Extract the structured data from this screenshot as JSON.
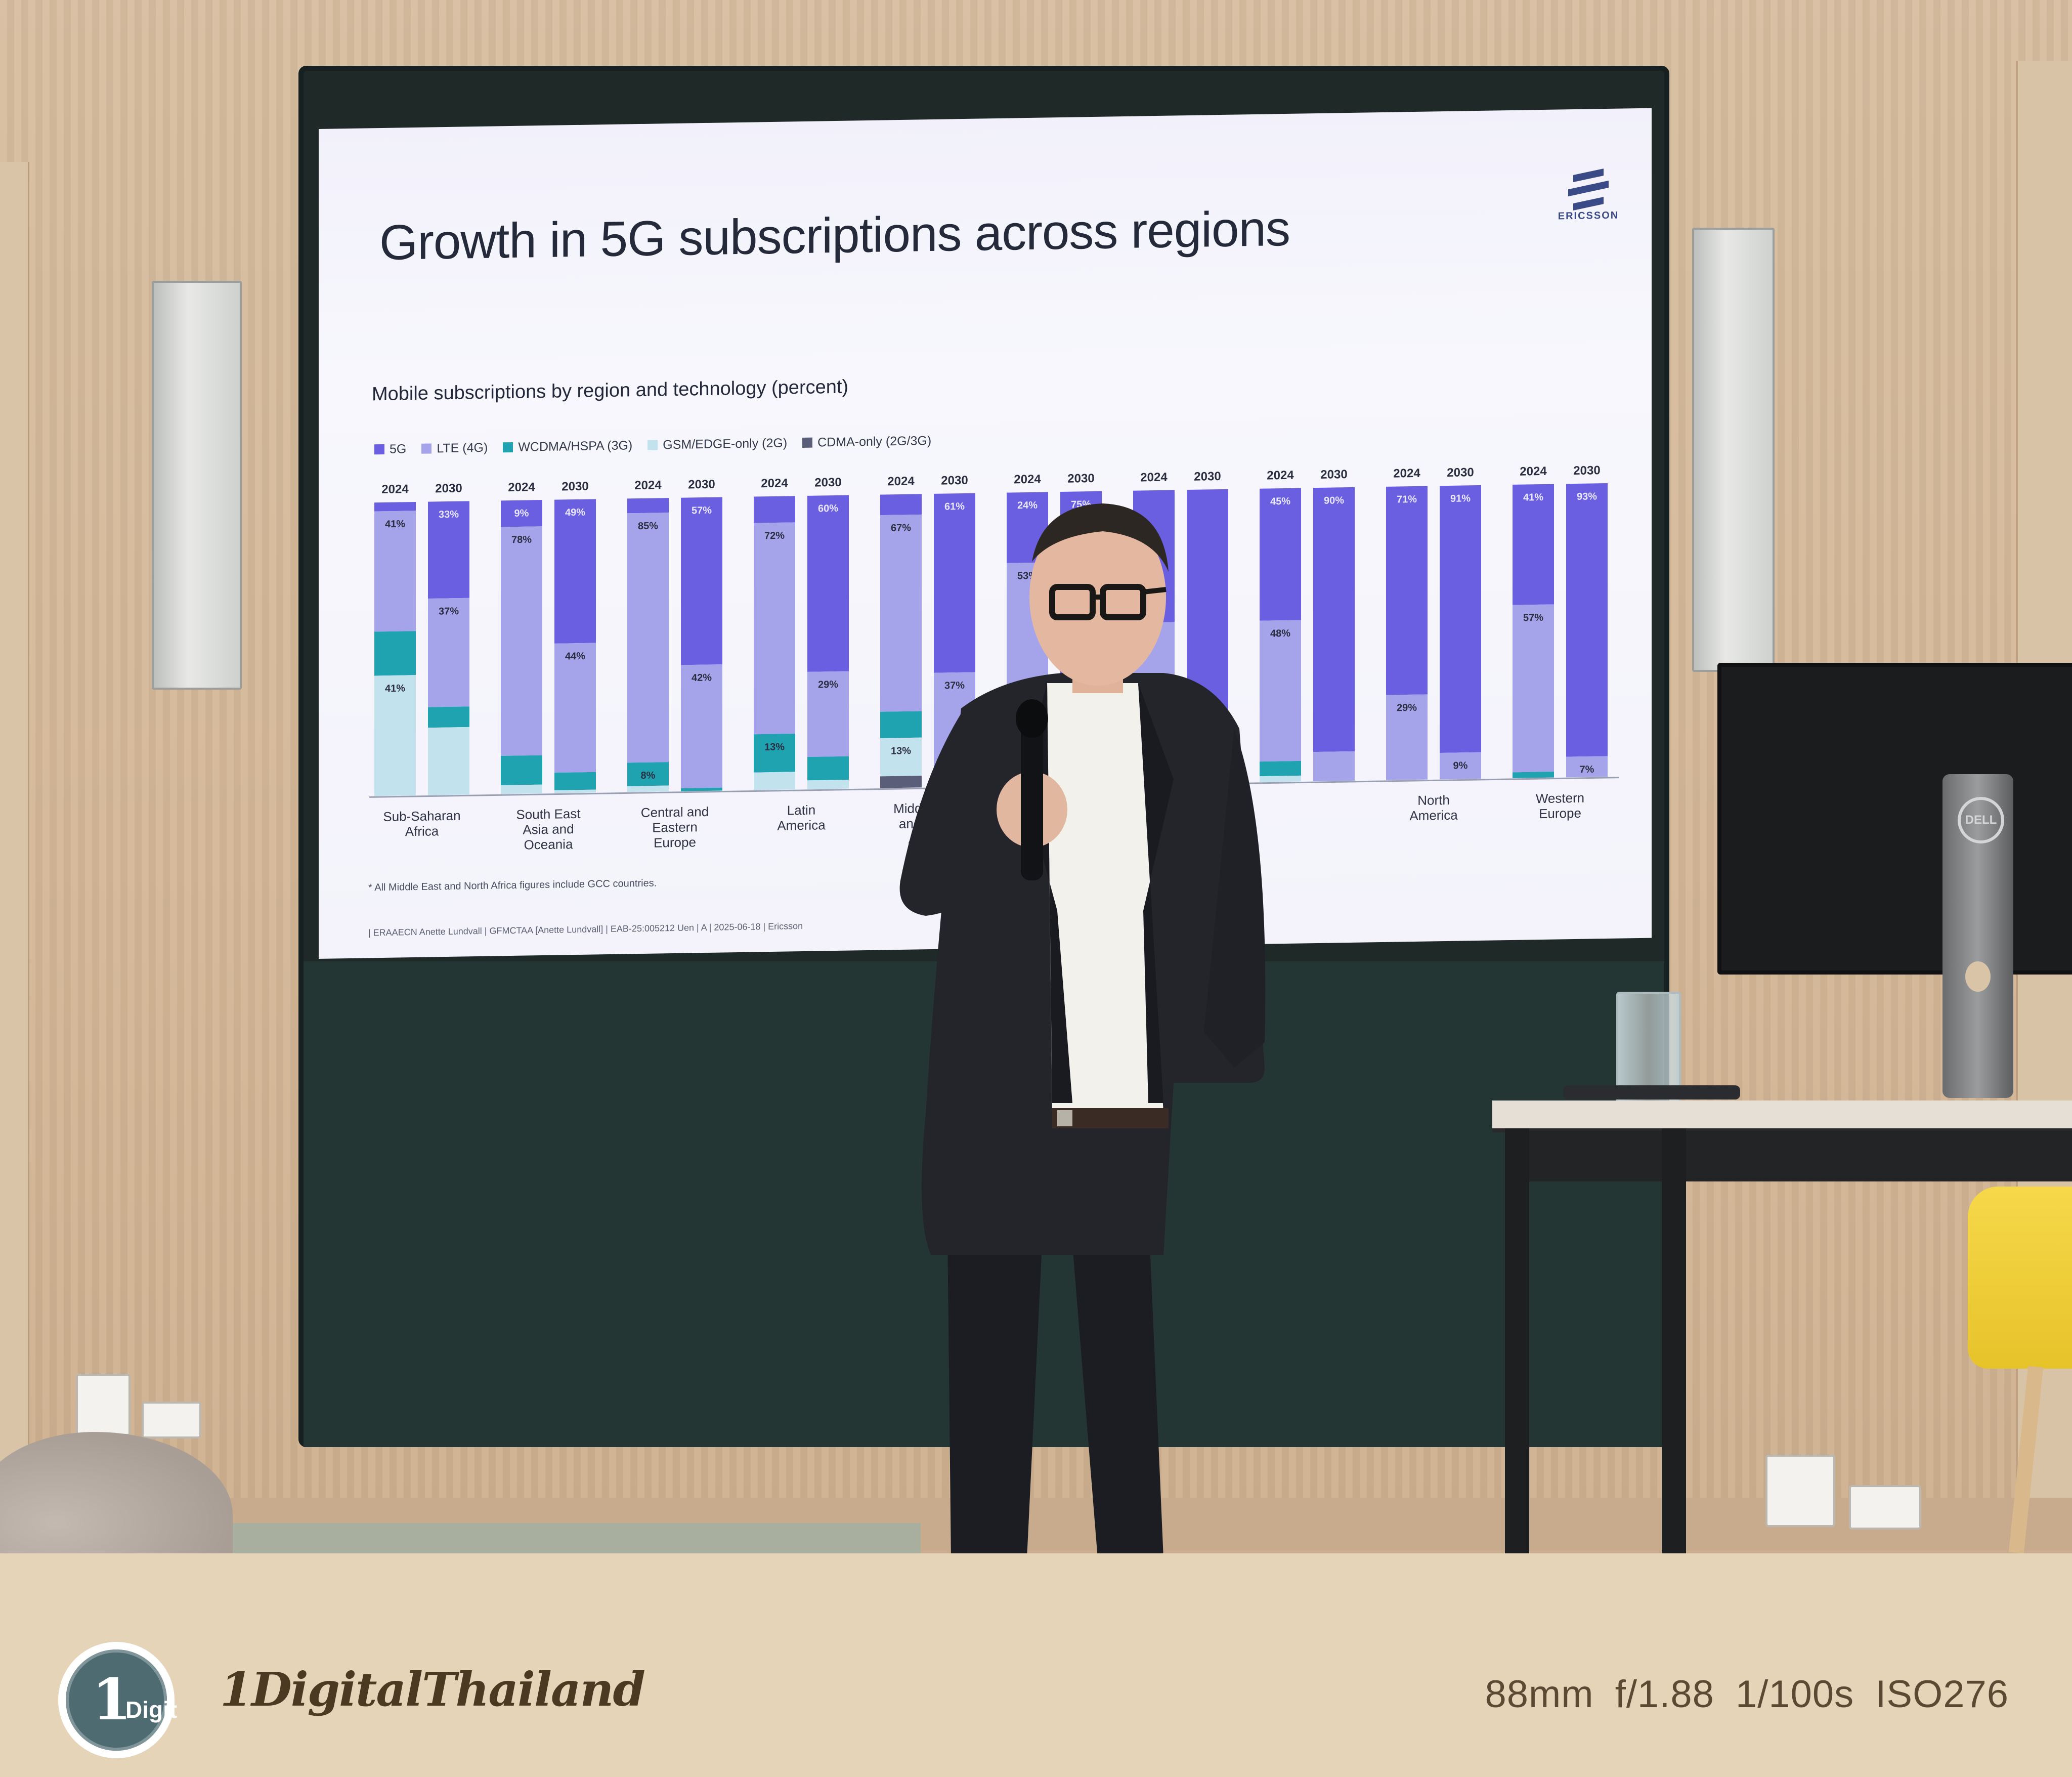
{
  "slide": {
    "title": "Growth in 5G subscriptions across regions",
    "brand": "ERICSSON",
    "chart_subtitle": "Mobile subscriptions by region and technology (percent)",
    "footnote": "* All Middle East and North Africa figures include GCC countries.",
    "footer": "|  ERAAECN Anette Lundvall  |  GFMCTAA [Anette Lundvall]  |  EAB-25:005212 Uen  |  A  |  2025-06-18  |  Ericsson"
  },
  "chart_data": {
    "type": "bar",
    "stacked": true,
    "legend_position": "top-left",
    "series": [
      {
        "name": "5G",
        "color": "#6a5fe0"
      },
      {
        "name": "LTE (4G)",
        "color": "#a5a4ea"
      },
      {
        "name": "WCDMA/HSPA (3G)",
        "color": "#1fa3b1"
      },
      {
        "name": "GSM/EDGE-only (2G)",
        "color": "#c2e2ee"
      },
      {
        "name": "CDMA-only (2G/3G)",
        "color": "#5b5e78"
      }
    ],
    "groups": [
      {
        "region": "Sub-Saharan\nAfrica",
        "bars": [
          {
            "year": "2024",
            "segments": [
              0.03,
              0.41,
              0.15,
              0.41,
              0
            ],
            "labels": {
              "1": "41%",
              "3": "41%"
            }
          },
          {
            "year": "2030",
            "segments": [
              0.33,
              0.37,
              0.07,
              0.23,
              0
            ],
            "labels": {
              "0": "33%",
              "1": "37%"
            }
          }
        ]
      },
      {
        "region": "South East\nAsia and\nOceania",
        "bars": [
          {
            "year": "2024",
            "segments": [
              0.09,
              0.78,
              0.1,
              0.03,
              0
            ],
            "labels": {
              "0": "9%",
              "1": "78%"
            }
          },
          {
            "year": "2030",
            "segments": [
              0.49,
              0.44,
              0.06,
              0.01,
              0
            ],
            "labels": {
              "0": "49%",
              "1": "44%"
            }
          }
        ]
      },
      {
        "region": "Central and\nEastern\nEurope",
        "bars": [
          {
            "year": "2024",
            "segments": [
              0.05,
              0.85,
              0.08,
              0.02,
              0
            ],
            "labels": {
              "1": "85%",
              "2": "8%"
            }
          },
          {
            "year": "2030",
            "segments": [
              0.57,
              0.42,
              0.01,
              0,
              0
            ],
            "labels": {
              "0": "57%",
              "1": "42%"
            }
          }
        ]
      },
      {
        "region": "Latin\nAmerica",
        "bars": [
          {
            "year": "2024",
            "segments": [
              0.09,
              0.72,
              0.13,
              0.06,
              0
            ],
            "labels": {
              "1": "72%",
              "2": "13%"
            }
          },
          {
            "year": "2030",
            "segments": [
              0.6,
              0.29,
              0.08,
              0.03,
              0
            ],
            "labels": {
              "0": "60%",
              "1": "29%"
            }
          }
        ]
      },
      {
        "region": "Middle East\nand North\nAfrica*",
        "bars": [
          {
            "year": "2024",
            "segments": [
              0.07,
              0.67,
              0.09,
              0.13,
              0.04
            ],
            "labels": {
              "1": "67%",
              "3": "13%"
            }
          },
          {
            "year": "2030",
            "segments": [
              0.61,
              0.37,
              0.02,
              0,
              0
            ],
            "labels": {
              "0": "61%",
              "1": "37%"
            }
          }
        ]
      },
      {
        "region": "",
        "bars": [
          {
            "year": "2024",
            "segments": [
              0.24,
              0.53,
              0.15,
              0.08,
              0
            ],
            "labels": {
              "0": "24%",
              "1": "53%"
            }
          },
          {
            "year": "2030",
            "segments": [
              0.75,
              0.23,
              0.02,
              0,
              0
            ],
            "labels": {
              "0": "75%"
            }
          }
        ]
      },
      {
        "region": "",
        "bars": [
          {
            "year": "2024",
            "segments": [
              0.45,
              0.48,
              0.05,
              0.02,
              0
            ],
            "labels": {}
          },
          {
            "year": "2030",
            "segments": [
              0.9,
              0.1,
              0,
              0,
              0
            ],
            "labels": {}
          }
        ]
      },
      {
        "region": "",
        "bars": [
          {
            "year": "2024",
            "segments": [
              0.45,
              0.48,
              0.05,
              0.02,
              0
            ],
            "labels": {
              "0": "45%",
              "1": "48%"
            }
          },
          {
            "year": "2030",
            "segments": [
              0.9,
              0.1,
              0,
              0,
              0
            ],
            "labels": {
              "0": "90%"
            }
          }
        ]
      },
      {
        "region": "North\nAmerica",
        "bars": [
          {
            "year": "2024",
            "segments": [
              0.71,
              0.29,
              0,
              0,
              0
            ],
            "labels": {
              "0": "71%",
              "1": "29%"
            }
          },
          {
            "year": "2030",
            "segments": [
              0.91,
              0.09,
              0,
              0,
              0
            ],
            "labels": {
              "0": "91%",
              "1": "9%"
            }
          }
        ]
      },
      {
        "region": "Western\nEurope",
        "bars": [
          {
            "year": "2024",
            "segments": [
              0.41,
              0.57,
              0.02,
              0,
              0
            ],
            "labels": {
              "0": "41%",
              "1": "57%"
            }
          },
          {
            "year": "2030",
            "segments": [
              0.93,
              0.07,
              0,
              0,
              0
            ],
            "labels": {
              "0": "93%",
              "1": "7%"
            }
          }
        ]
      }
    ]
  },
  "banner": {
    "badge_one": "1",
    "badge_digit": "Digit",
    "brand_name": "1DigitalThailand",
    "exif": "88mm  f/1.88  1/100s  ISO276"
  },
  "scene": {
    "monitor_logo": "DELL"
  }
}
